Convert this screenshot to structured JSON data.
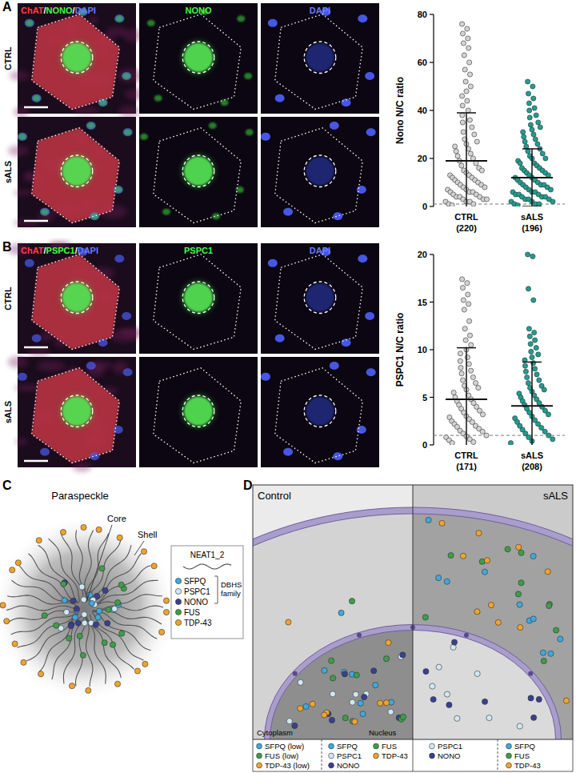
{
  "panel_a": {
    "label": "A",
    "rows": [
      "CTRL",
      "sALS"
    ],
    "channels": [
      [
        {
          "text": "ChAT",
          "color": "#ff4040"
        },
        {
          "text": "/",
          "color": "#ffffff"
        },
        {
          "text": "NONO",
          "color": "#40ff40"
        },
        {
          "text": "/",
          "color": "#ffffff"
        },
        {
          "text": "DAPI",
          "color": "#6a7bff"
        }
      ],
      [
        {
          "text": "NONO",
          "color": "#40ff40"
        }
      ],
      [
        {
          "text": "DAPI",
          "color": "#6a7bff"
        }
      ]
    ]
  },
  "panel_b": {
    "label": "B",
    "rows": [
      "CTRL",
      "sALS"
    ],
    "channels": [
      [
        {
          "text": "ChAT",
          "color": "#ff4040"
        },
        {
          "text": "/",
          "color": "#ffffff"
        },
        {
          "text": "PSPC1",
          "color": "#40ff40"
        },
        {
          "text": "/",
          "color": "#ffffff"
        },
        {
          "text": "DAPI",
          "color": "#6a7bff"
        }
      ],
      [
        {
          "text": "PSPC1",
          "color": "#40ff40"
        }
      ],
      [
        {
          "text": "DAPI",
          "color": "#6a7bff"
        }
      ]
    ]
  },
  "chart_data": [
    {
      "type": "strip",
      "y_label": "Nono N/C ratio",
      "ylim": [
        0,
        80
      ],
      "yticks": [
        0,
        20,
        40,
        60,
        80
      ],
      "categories": [
        "CTRL",
        "sALS"
      ],
      "n_labels": [
        "(220)",
        "(196)"
      ],
      "reference_line": 1,
      "groups": [
        {
          "color": "#d4d4d4",
          "mean": 19,
          "sd": 20,
          "values": [
            76,
            74,
            72,
            70,
            68,
            66,
            63,
            60,
            57,
            55,
            52,
            50,
            48,
            46,
            44,
            42,
            40,
            38,
            36,
            35,
            33,
            31,
            30,
            28,
            27,
            26,
            25,
            24,
            23,
            22,
            21,
            20,
            19,
            18,
            17,
            16,
            15,
            15,
            14,
            13,
            13,
            12,
            12,
            11,
            11,
            10,
            10,
            9,
            9,
            8,
            8,
            7,
            7,
            6,
            6,
            6,
            5,
            5,
            4,
            4,
            4,
            3,
            3,
            3,
            2,
            2,
            2,
            1,
            1,
            0.5
          ]
        },
        {
          "color": "#1f9e8f",
          "mean": 12,
          "sd": 12,
          "values": [
            52,
            50,
            47,
            45,
            43,
            41,
            40,
            38,
            37,
            35,
            34,
            33,
            32,
            31,
            30,
            29,
            28,
            27,
            26,
            25,
            24,
            23,
            22,
            21,
            20,
            20,
            19,
            18,
            18,
            17,
            16,
            16,
            15,
            15,
            14,
            14,
            13,
            13,
            12,
            12,
            11,
            11,
            10,
            10,
            9,
            9,
            9,
            8,
            8,
            7,
            7,
            6,
            6,
            6,
            5,
            5,
            5,
            4,
            4,
            4,
            3,
            3,
            3,
            2,
            2,
            2,
            1,
            1,
            1,
            0.5
          ]
        }
      ]
    },
    {
      "type": "strip",
      "y_label": "PSPC1 N/C ratio",
      "ylim": [
        0,
        20
      ],
      "yticks": [
        0,
        5,
        10,
        15,
        20
      ],
      "categories": [
        "CTRL",
        "sALS"
      ],
      "n_labels": [
        "(171)",
        "(208)"
      ],
      "reference_line": 1,
      "groups": [
        {
          "color": "#d4d4d4",
          "mean": 4.8,
          "sd": 5.4,
          "values": [
            17.4,
            17,
            16.5,
            15.8,
            15.2,
            14.8,
            14.2,
            13,
            12.2,
            11.5,
            11,
            10.5,
            10,
            9.6,
            9.2,
            8.8,
            8.5,
            8.1,
            7.8,
            7.5,
            7.1,
            6.8,
            6.5,
            6.2,
            6,
            5.8,
            5.5,
            5.2,
            5,
            4.8,
            4.6,
            4.4,
            4.2,
            4,
            3.8,
            3.6,
            3.4,
            3.2,
            3,
            2.9,
            2.7,
            2.5,
            2.4,
            2.2,
            2,
            1.9,
            1.7,
            1.5,
            1.4,
            1.2,
            1,
            0.9,
            0.8,
            0.6,
            0.5,
            0.3,
            0.2
          ]
        },
        {
          "color": "#1f9e8f",
          "mean": 4.1,
          "sd": 4.6,
          "values": [
            20,
            19.8,
            16.4,
            15.2,
            12.2,
            11.8,
            11.4,
            11,
            10.6,
            10.2,
            9.8,
            9.5,
            9.2,
            8.9,
            8.6,
            8.3,
            8,
            7.7,
            7.4,
            7.1,
            6.8,
            6.5,
            6.2,
            6,
            5.8,
            5.6,
            5.4,
            5.2,
            5,
            4.8,
            4.6,
            4.4,
            4.2,
            4,
            3.8,
            3.6,
            3.4,
            3.2,
            3,
            2.8,
            2.6,
            2.4,
            2.2,
            2,
            1.8,
            1.6,
            1.4,
            1.2,
            1,
            0.8,
            0.6,
            0.4,
            0.2
          ]
        }
      ]
    }
  ],
  "panel_c": {
    "label": "C",
    "title": "Paraspeckle",
    "core_label": "Core",
    "shell_label": "Shell",
    "legend": {
      "rna": "NEAT1_2",
      "family": "DBHS family",
      "items": [
        {
          "name": "SFPQ",
          "color": "#3fa9dc"
        },
        {
          "name": "PSPC1",
          "color": "#cfe8f3"
        },
        {
          "name": "NONO",
          "color": "#3b3f8f"
        },
        {
          "name": "FUS",
          "color": "#3d9e48"
        },
        {
          "name": "TDP-43",
          "color": "#f0a32e"
        }
      ]
    }
  },
  "panel_d": {
    "label": "D",
    "left_title": "Control",
    "right_title": "sALS",
    "cytoplasm": "Cytoplasm",
    "nucleus": "Nucleus",
    "legend_columns": [
      [
        {
          "name": "SFPQ (low)",
          "color": "#3fa9dc"
        },
        {
          "name": "FUS (low)",
          "color": "#3d9e48"
        },
        {
          "name": "TDP-43 (low)",
          "color": "#f0a32e"
        }
      ],
      [
        {
          "name": "SFPQ",
          "color": "#3fa9dc"
        },
        {
          "name": "PSPC1",
          "color": "#cfe8f3"
        },
        {
          "name": "NONO",
          "color": "#3b3f8f"
        }
      ],
      [
        {
          "name": "FUS",
          "color": "#3d9e48"
        },
        {
          "name": "TDP-43",
          "color": "#f0a32e"
        }
      ],
      [
        {
          "name": "PSPC1",
          "color": "#cfe8f3"
        },
        {
          "name": "NONO",
          "color": "#3b3f8f"
        }
      ],
      [
        {
          "name": "SFPQ",
          "color": "#3fa9dc"
        },
        {
          "name": "FUS",
          "color": "#3d9e48"
        },
        {
          "name": "TDP-43",
          "color": "#f0a32e"
        }
      ]
    ]
  }
}
